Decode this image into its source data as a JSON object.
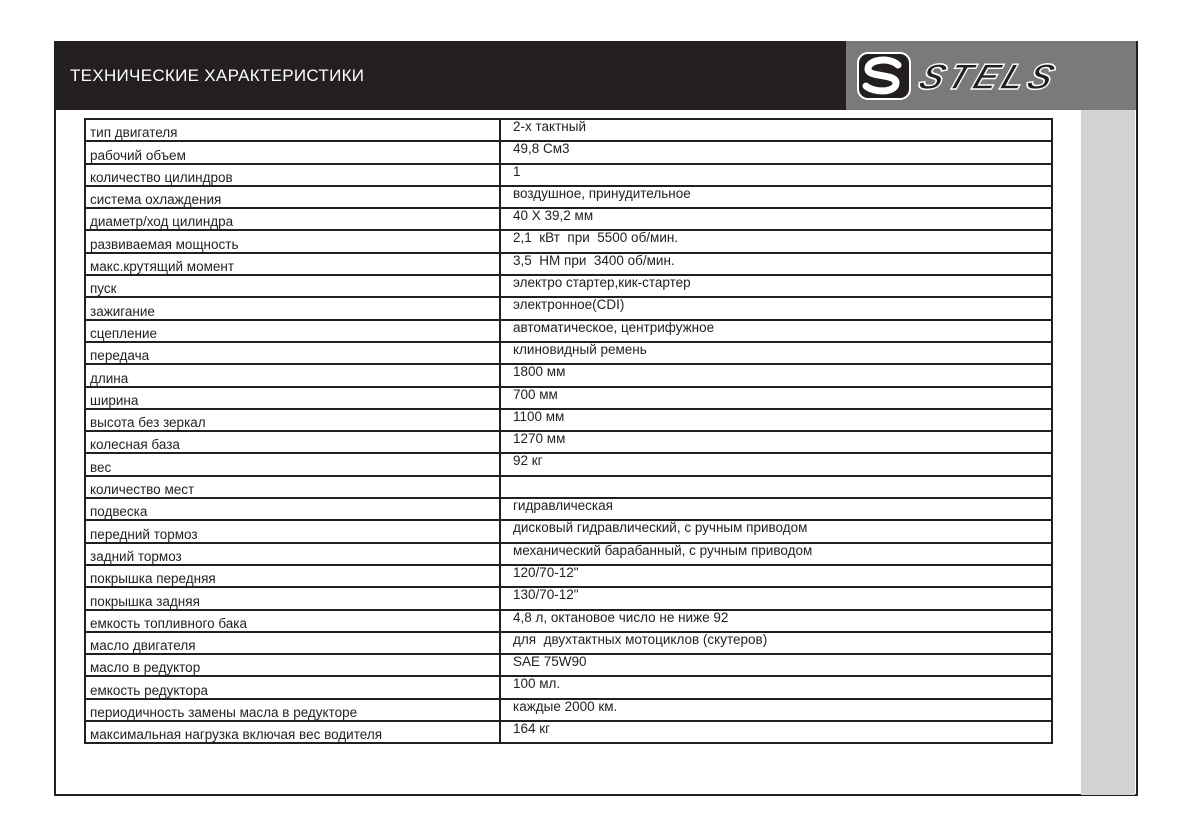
{
  "header": {
    "title": "ТЕХНИЧЕСКИЕ ХАРАКТЕРИСТИКИ"
  },
  "logo": {
    "text": "STELS",
    "background": "#7a7a7a"
  },
  "specs": [
    {
      "label": "тип двигателя",
      "value": "2-х тактный"
    },
    {
      "label": "рабочий объем",
      "value": "49,8 См3"
    },
    {
      "label": "количество цилиндров",
      "value": "1"
    },
    {
      "label": "система охлаждения",
      "value": "воздушное, принудительное"
    },
    {
      "label": "диаметр/ход цилиндра",
      "value": "40 X 39,2 мм"
    },
    {
      "label": "развиваемая мощность",
      "value": "2,1  кВт  при  5500 об/мин."
    },
    {
      "label": "макс.крутящий момент",
      "value": "3,5  НМ при  3400 об/мин."
    },
    {
      "label": "пуск",
      "value": "электро стартер,кик-стартер"
    },
    {
      "label": "зажигание",
      "value": "электронное(CDI)"
    },
    {
      "label": "сцепление",
      "value": "автоматическое, центрифужное"
    },
    {
      "label": "передача",
      "value": "клиновидный ремень"
    },
    {
      "label": "длина",
      "value": "1800 мм"
    },
    {
      "label": "ширина",
      "value": "700 мм"
    },
    {
      "label": "высота без зеркал",
      "value": "1100 мм"
    },
    {
      "label": "колесная база",
      "value": "1270 мм"
    },
    {
      "label": "вес",
      "value": "92 кг"
    },
    {
      "label": "количество мест",
      "value": ""
    },
    {
      "label": "подвеска",
      "value": "гидравлическая"
    },
    {
      "label": "передний тормоз",
      "value": "дисковый гидравлический, с ручным приводом"
    },
    {
      "label": "задний тормоз",
      "value": "механический барабанный, с ручным приводом"
    },
    {
      "label": "покрышка передняя",
      "value": "120/70-12\""
    },
    {
      "label": "покрышка задняя",
      "value": "130/70-12\""
    },
    {
      "label": "емкость топливного бака",
      "value": "4,8 л, октановое число не ниже 92"
    },
    {
      "label": "масло двигателя",
      "value": "для  двухтактных мотоциклов (скутеров)"
    },
    {
      "label": "масло в редуктор",
      "value": "SAE 75W90"
    },
    {
      "label": "емкость редуктора",
      "value": "100 мл."
    },
    {
      "label": "периодичность замены масла в редукторе",
      "value": "каждые 2000 км."
    },
    {
      "label": "максимальная нагрузка включая вес водителя",
      "value": "164 кг"
    }
  ]
}
